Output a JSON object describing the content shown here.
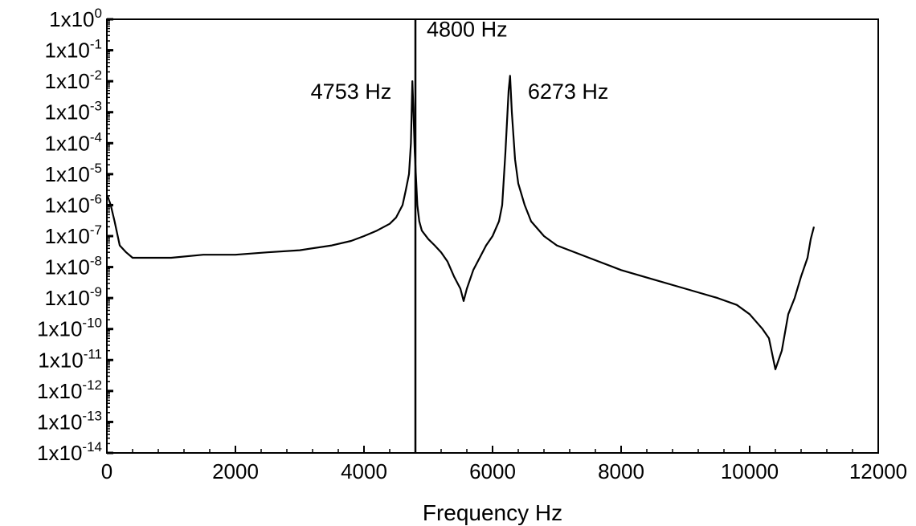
{
  "chart_data": {
    "type": "line",
    "title": "",
    "xlabel": "Frequency Hz",
    "ylabel": "",
    "xlim": [
      0,
      12000
    ],
    "ylim": [
      1e-14,
      1
    ],
    "yscale": "log",
    "grid": false,
    "x_ticks": [
      0,
      2000,
      4000,
      6000,
      8000,
      10000,
      12000
    ],
    "x_tick_labels": [
      "0",
      "2000",
      "4000",
      "6000",
      "8000",
      "10000",
      "12000"
    ],
    "y_tick_labels": [
      {
        "base": "1x10",
        "exp": "0"
      },
      {
        "base": "1x10",
        "exp": "-1"
      },
      {
        "base": "1x10",
        "exp": "-2"
      },
      {
        "base": "1x10",
        "exp": "-3"
      },
      {
        "base": "1x10",
        "exp": "-4"
      },
      {
        "base": "1x10",
        "exp": "-5"
      },
      {
        "base": "1x10",
        "exp": "-6"
      },
      {
        "base": "1x10",
        "exp": "-7"
      },
      {
        "base": "1x10",
        "exp": "-8"
      },
      {
        "base": "1x10",
        "exp": "-9"
      },
      {
        "base": "1x10",
        "exp": "-10"
      },
      {
        "base": "1x10",
        "exp": "-11"
      },
      {
        "base": "1x10",
        "exp": "-12"
      },
      {
        "base": "1x10",
        "exp": "-13"
      },
      {
        "base": "1x10",
        "exp": "-14"
      }
    ],
    "annotations": [
      {
        "text": "4800 Hz",
        "x": 4800,
        "y": 0.5
      },
      {
        "text": "4753 Hz",
        "x": 4753,
        "y": 0.005
      },
      {
        "text": "6273 Hz",
        "x": 6273,
        "y": 0.005
      }
    ],
    "vertical_lines": [
      {
        "x": 4800
      }
    ],
    "series": [
      {
        "x": [
          10,
          60,
          120,
          200,
          300,
          400,
          500,
          600,
          800,
          1000,
          1500,
          2000,
          2500,
          3000,
          3500,
          3800,
          4000,
          4200,
          4400,
          4500,
          4600,
          4650,
          4700,
          4730,
          4753,
          4770,
          4790,
          4830,
          4860,
          4900,
          5000,
          5100,
          5200,
          5300,
          5400,
          5500,
          5550,
          5600,
          5700,
          5800,
          5900,
          6000,
          6100,
          6150,
          6200,
          6250,
          6273,
          6300,
          6350,
          6400,
          6500,
          6600,
          6800,
          7000,
          7500,
          8000,
          8500,
          9000,
          9500,
          9800,
          10000,
          10200,
          10300,
          10400,
          10500,
          10600,
          10700,
          10800,
          10900,
          10950,
          11000
        ],
        "y": [
          2e-06,
          1e-06,
          3e-07,
          5e-08,
          3e-08,
          2e-08,
          2e-08,
          2e-08,
          2e-08,
          2e-08,
          2.5e-08,
          2.5e-08,
          3e-08,
          3.5e-08,
          5e-08,
          7e-08,
          1e-07,
          1.5e-07,
          2.5e-07,
          4e-07,
          1e-06,
          3e-06,
          1e-05,
          0.0001,
          0.01,
          0.001,
          5e-05,
          1e-06,
          3e-07,
          1.5e-07,
          8e-08,
          5e-08,
          3e-08,
          1.5e-08,
          5e-09,
          2e-09,
          8e-10,
          2e-09,
          8e-09,
          2e-08,
          5e-08,
          1e-07,
          3e-07,
          1e-06,
          5e-05,
          0.005,
          0.015,
          0.001,
          3e-05,
          5e-06,
          1e-06,
          3e-07,
          1e-07,
          5e-08,
          2e-08,
          8e-09,
          4e-09,
          2e-09,
          1e-09,
          6e-10,
          3e-10,
          1e-10,
          5e-11,
          5e-12,
          2e-11,
          3e-10,
          1e-09,
          5e-09,
          2e-08,
          8e-08,
          2e-07
        ]
      }
    ]
  }
}
